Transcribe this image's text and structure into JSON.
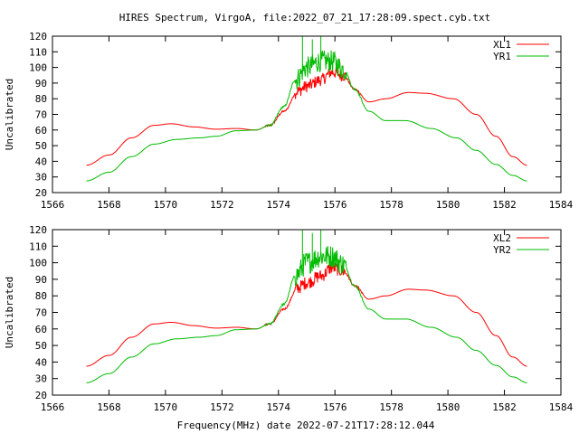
{
  "title": "HIRES Spectrum, VirgoA, file:2022_07_21_17:28:09.spect.cyb.txt",
  "xlabel": "Frequency(MHz) date 2022-07-21T17:28:12.044",
  "chart_data": [
    {
      "type": "line",
      "ylabel": "Uncalibrated",
      "xlim": [
        1566,
        1584
      ],
      "ylim": [
        20,
        120
      ],
      "x_ticks": [
        1566,
        1568,
        1570,
        1572,
        1574,
        1576,
        1578,
        1580,
        1582,
        1584
      ],
      "y_ticks": [
        20,
        30,
        40,
        50,
        60,
        70,
        80,
        90,
        100,
        110,
        120
      ],
      "legend_position": "top-right",
      "series": [
        {
          "name": "XL1",
          "color": "#ff0000",
          "points": [
            [
              1567.2,
              37.5
            ],
            [
              1568.0,
              44
            ],
            [
              1568.8,
              55
            ],
            [
              1569.6,
              63
            ],
            [
              1570.2,
              64
            ],
            [
              1571.0,
              62
            ],
            [
              1571.8,
              60.5
            ],
            [
              1572.5,
              61
            ],
            [
              1573.2,
              60
            ],
            [
              1573.7,
              63
            ],
            [
              1574.2,
              72
            ],
            [
              1574.7,
              85
            ],
            [
              1575.0,
              88
            ],
            [
              1575.5,
              92
            ],
            [
              1575.9,
              97
            ],
            [
              1576.3,
              95
            ],
            [
              1576.7,
              86
            ],
            [
              1577.2,
              78
            ],
            [
              1577.8,
              80
            ],
            [
              1578.6,
              84
            ],
            [
              1579.2,
              83.5
            ],
            [
              1580.2,
              80
            ],
            [
              1581.0,
              70
            ],
            [
              1581.7,
              56
            ],
            [
              1582.3,
              43
            ],
            [
              1582.8,
              37.5
            ]
          ],
          "noise_band": [
            1574.6,
            1576.4,
            4
          ]
        },
        {
          "name": "YR1",
          "color": "#00bb00",
          "points": [
            [
              1567.2,
              27.5
            ],
            [
              1568.0,
              33
            ],
            [
              1568.8,
              43
            ],
            [
              1569.6,
              51
            ],
            [
              1570.4,
              54
            ],
            [
              1571.2,
              55
            ],
            [
              1571.8,
              56
            ],
            [
              1572.5,
              59.5
            ],
            [
              1573.2,
              60
            ],
            [
              1573.7,
              63
            ],
            [
              1574.2,
              75
            ],
            [
              1574.6,
              92
            ],
            [
              1575.0,
              100
            ],
            [
              1575.5,
              104
            ],
            [
              1575.9,
              104
            ],
            [
              1576.3,
              99
            ],
            [
              1576.7,
              86
            ],
            [
              1577.2,
              72
            ],
            [
              1577.8,
              66
            ],
            [
              1578.5,
              66
            ],
            [
              1579.4,
              61
            ],
            [
              1580.3,
              55
            ],
            [
              1581.0,
              47
            ],
            [
              1581.7,
              38
            ],
            [
              1582.3,
              31
            ],
            [
              1582.8,
              27.5
            ]
          ],
          "noise_band": [
            1574.6,
            1576.4,
            7
          ],
          "spikes": [
            [
              1574.85,
              120
            ],
            [
              1575.2,
              118
            ],
            [
              1575.5,
              120
            ]
          ]
        }
      ]
    },
    {
      "type": "line",
      "ylabel": "Uncalibrated",
      "xlim": [
        1566,
        1584
      ],
      "ylim": [
        20,
        120
      ],
      "x_ticks": [
        1566,
        1568,
        1570,
        1572,
        1574,
        1576,
        1578,
        1580,
        1582,
        1584
      ],
      "y_ticks": [
        20,
        30,
        40,
        50,
        60,
        70,
        80,
        90,
        100,
        110,
        120
      ],
      "legend_position": "top-right",
      "series": [
        {
          "name": "XL2",
          "color": "#ff0000",
          "points": [
            [
              1567.2,
              37.5
            ],
            [
              1568.0,
              44
            ],
            [
              1568.8,
              55
            ],
            [
              1569.6,
              63
            ],
            [
              1570.2,
              64
            ],
            [
              1571.0,
              62
            ],
            [
              1571.8,
              60.5
            ],
            [
              1572.5,
              61
            ],
            [
              1573.2,
              60
            ],
            [
              1573.7,
              63
            ],
            [
              1574.2,
              72
            ],
            [
              1574.7,
              85
            ],
            [
              1575.0,
              88
            ],
            [
              1575.5,
              92
            ],
            [
              1575.9,
              97
            ],
            [
              1576.3,
              95
            ],
            [
              1576.7,
              86
            ],
            [
              1577.2,
              78
            ],
            [
              1577.8,
              80
            ],
            [
              1578.6,
              84
            ],
            [
              1579.2,
              83.5
            ],
            [
              1580.2,
              80
            ],
            [
              1581.0,
              70
            ],
            [
              1581.7,
              56
            ],
            [
              1582.3,
              43
            ],
            [
              1582.8,
              37.5
            ]
          ],
          "noise_band": [
            1574.6,
            1576.4,
            4
          ]
        },
        {
          "name": "YR2",
          "color": "#00bb00",
          "points": [
            [
              1567.2,
              27.5
            ],
            [
              1568.0,
              33
            ],
            [
              1568.8,
              43
            ],
            [
              1569.6,
              51
            ],
            [
              1570.4,
              54
            ],
            [
              1571.2,
              55
            ],
            [
              1571.8,
              56
            ],
            [
              1572.5,
              59.5
            ],
            [
              1573.2,
              60
            ],
            [
              1573.7,
              63
            ],
            [
              1574.2,
              75
            ],
            [
              1574.6,
              92
            ],
            [
              1575.0,
              100
            ],
            [
              1575.5,
              104
            ],
            [
              1575.9,
              104
            ],
            [
              1576.3,
              99
            ],
            [
              1576.7,
              86
            ],
            [
              1577.2,
              72
            ],
            [
              1577.8,
              66
            ],
            [
              1578.5,
              66
            ],
            [
              1579.4,
              61
            ],
            [
              1580.3,
              55
            ],
            [
              1581.0,
              47
            ],
            [
              1581.7,
              38
            ],
            [
              1582.3,
              31
            ],
            [
              1582.8,
              27.5
            ]
          ],
          "noise_band": [
            1574.6,
            1576.4,
            7
          ],
          "spikes": [
            [
              1574.85,
              120
            ],
            [
              1575.2,
              118
            ],
            [
              1575.5,
              120
            ]
          ]
        }
      ]
    }
  ]
}
